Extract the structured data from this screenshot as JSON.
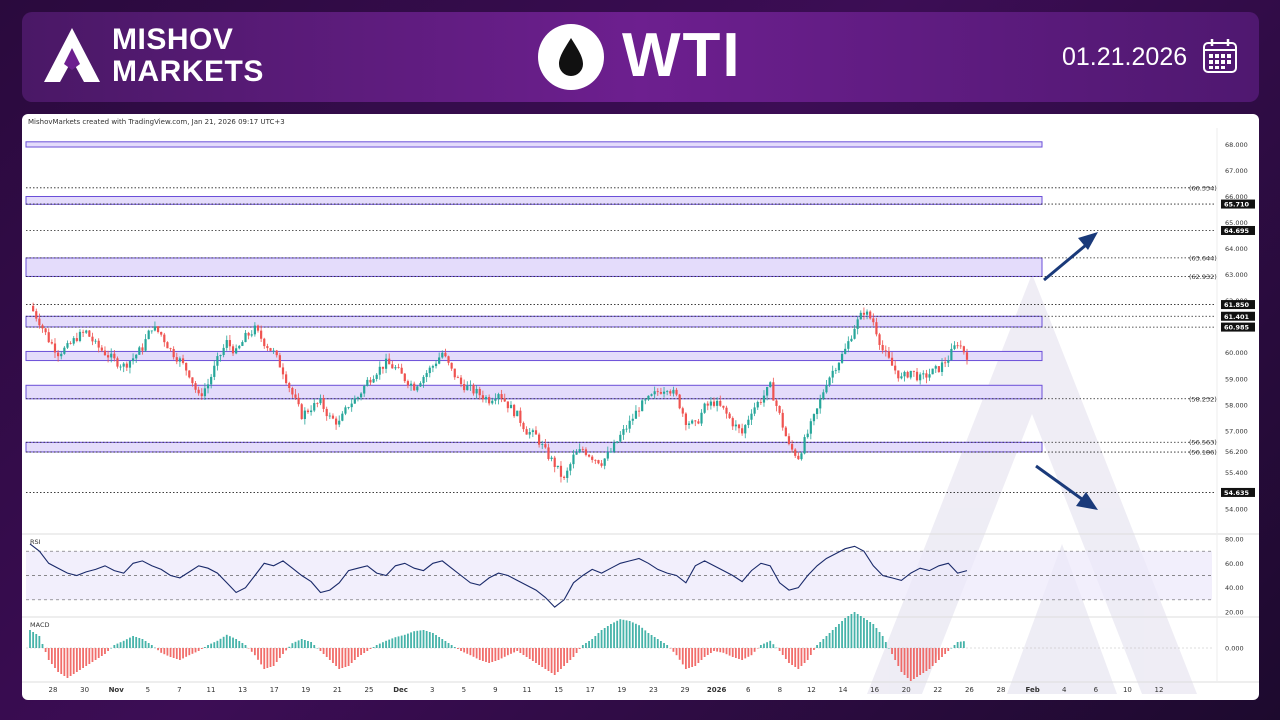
{
  "header": {
    "brand_line1": "MISHOV",
    "brand_line2": "MARKETS",
    "symbol": "WTI",
    "date": "01.21.2026",
    "icons": [
      "mishov-logo-icon",
      "oil-drop-icon",
      "calendar-icon"
    ]
  },
  "credit": "MishovMarkets created with TradingView.com, Jan 21, 2026 09:17 UTC+3",
  "colors": {
    "bull": "#26a69a",
    "bear": "#ef5350",
    "zone_fill": "#e4dcfb",
    "zone_stroke": "#6b4fd8",
    "arrow": "#1a3a7a",
    "line": "#1a2a6a"
  },
  "chart_data": [
    {
      "type": "candlestick",
      "title": "WTI",
      "ylim": [
        53.5,
        68.4
      ],
      "price_ticks": [
        "68.000",
        "67.000",
        "66.000",
        "65.000",
        "64.000",
        "63.000",
        "62.000",
        "61.000",
        "60.000",
        "59.000",
        "58.000",
        "57.000",
        "56.200",
        "55.400",
        "54.000"
      ],
      "x_ticks": [
        "28",
        "30",
        "Nov",
        "5",
        "7",
        "11",
        "13",
        "17",
        "19",
        "21",
        "25",
        "Dec",
        "3",
        "5",
        "9",
        "11",
        "15",
        "17",
        "19",
        "23",
        "29",
        "2026",
        "6",
        "8",
        "12",
        "14",
        "16",
        "20",
        "22",
        "26",
        "28",
        "Feb",
        "4",
        "6",
        "10",
        "12"
      ],
      "price_labels": [
        {
          "text": "(66.334)",
          "value": 66.334,
          "boxed": false
        },
        {
          "text": "65.710",
          "value": 65.71,
          "boxed": true
        },
        {
          "text": "64.695",
          "value": 64.695,
          "boxed": true
        },
        {
          "text": "(63.644)",
          "value": 63.644,
          "boxed": false
        },
        {
          "text": "(62.932)",
          "value": 62.932,
          "boxed": false
        },
        {
          "text": "61.850",
          "value": 61.85,
          "boxed": true
        },
        {
          "text": "61.401",
          "value": 61.401,
          "boxed": true
        },
        {
          "text": "60.985",
          "value": 60.985,
          "boxed": true
        },
        {
          "text": "(58.232)",
          "value": 58.232,
          "boxed": false
        },
        {
          "text": "(56.563)",
          "value": 56.563,
          "boxed": false
        },
        {
          "text": "(56.186)",
          "value": 56.186,
          "boxed": false
        },
        {
          "text": "54.635",
          "value": 54.635,
          "boxed": true
        }
      ],
      "zones": [
        [
          67.9,
          68.1
        ],
        [
          65.7,
          66.0
        ],
        [
          62.93,
          63.64
        ],
        [
          60.99,
          61.4
        ],
        [
          59.7,
          60.05
        ],
        [
          58.23,
          58.75
        ],
        [
          56.19,
          56.56
        ]
      ],
      "dotted_levels": [
        66.334,
        65.71,
        64.695,
        63.644,
        62.932,
        61.85,
        61.401,
        60.985,
        58.232,
        56.563,
        56.186,
        54.635
      ],
      "close_path": [
        61.8,
        61.2,
        60.5,
        60.0,
        60.2,
        60.6,
        60.8,
        60.3,
        60.0,
        59.7,
        59.5,
        59.8,
        60.2,
        61.0,
        60.7,
        60.1,
        59.7,
        59.2,
        58.3,
        58.8,
        59.7,
        60.4,
        60.0,
        60.6,
        60.9,
        60.4,
        60.0,
        59.3,
        58.4,
        57.6,
        57.9,
        58.1,
        57.5,
        57.3,
        58.0,
        58.3,
        58.9,
        59.3,
        59.6,
        59.4,
        59.0,
        58.7,
        59.1,
        59.5,
        60.0,
        59.3,
        58.8,
        58.6,
        58.4,
        58.2,
        58.5,
        58.0,
        57.6,
        57.0,
        56.8,
        56.2,
        55.7,
        55.1,
        56.0,
        56.3,
        56.0,
        55.8,
        56.2,
        56.8,
        57.3,
        57.9,
        58.2,
        58.5,
        58.7,
        58.3,
        57.4,
        57.2,
        57.9,
        58.1,
        57.8,
        57.3,
        56.9,
        57.8,
        58.2,
        58.7,
        57.6,
        56.4,
        56.0,
        56.9,
        57.8,
        58.9,
        59.5,
        60.1,
        61.0,
        61.6,
        61.2,
        60.1,
        59.5,
        59.0,
        59.3,
        59.0,
        59.2,
        59.4,
        59.8,
        60.4,
        59.9
      ],
      "arrows": [
        "up",
        "down"
      ],
      "watermark": "mishov-logo-watermark"
    },
    {
      "type": "line",
      "title": "RSI",
      "ylim": [
        20,
        80
      ],
      "ticks": [
        "80.00",
        "60.00",
        "40.00",
        "20.00"
      ],
      "levels": [
        70,
        50,
        30
      ],
      "values": [
        76,
        70,
        60,
        56,
        52,
        50,
        53,
        55,
        58,
        54,
        52,
        60,
        62,
        58,
        55,
        50,
        48,
        53,
        58,
        56,
        52,
        44,
        36,
        40,
        50,
        60,
        58,
        62,
        56,
        50,
        45,
        36,
        38,
        44,
        54,
        56,
        58,
        52,
        50,
        58,
        60,
        56,
        54,
        60,
        62,
        56,
        50,
        44,
        42,
        48,
        52,
        50,
        46,
        42,
        38,
        32,
        24,
        30,
        44,
        50,
        55,
        52,
        56,
        60,
        62,
        64,
        60,
        55,
        52,
        50,
        44,
        58,
        62,
        58,
        54,
        50,
        45,
        54,
        60,
        58,
        44,
        38,
        40,
        50,
        58,
        64,
        68,
        72,
        74,
        70,
        58,
        50,
        48,
        46,
        52,
        56,
        54,
        58,
        60,
        52,
        54
      ]
    },
    {
      "type": "bar",
      "title": "MACD",
      "ticks": [
        "0.000"
      ],
      "values": [
        0.3,
        0.2,
        -0.2,
        -0.4,
        -0.5,
        -0.4,
        -0.3,
        -0.2,
        -0.1,
        0.05,
        0.12,
        0.2,
        0.15,
        0.05,
        -0.08,
        -0.15,
        -0.2,
        -0.12,
        -0.05,
        0.05,
        0.12,
        0.22,
        0.15,
        0.05,
        -0.12,
        -0.35,
        -0.3,
        -0.1,
        0.08,
        0.15,
        0.1,
        -0.05,
        -0.2,
        -0.35,
        -0.3,
        -0.15,
        -0.05,
        0.05,
        0.12,
        0.18,
        0.22,
        0.28,
        0.3,
        0.25,
        0.15,
        0.05,
        -0.05,
        -0.12,
        -0.2,
        -0.25,
        -0.2,
        -0.12,
        -0.05,
        -0.15,
        -0.25,
        -0.35,
        -0.45,
        -0.3,
        -0.15,
        0.05,
        0.15,
        0.3,
        0.4,
        0.48,
        0.45,
        0.38,
        0.25,
        0.15,
        0.05,
        -0.12,
        -0.35,
        -0.3,
        -0.15,
        -0.05,
        -0.08,
        -0.15,
        -0.2,
        -0.12,
        0.05,
        0.12,
        -0.05,
        -0.25,
        -0.35,
        -0.2,
        0.05,
        0.2,
        0.35,
        0.5,
        0.6,
        0.5,
        0.4,
        0.2,
        -0.1,
        -0.4,
        -0.55,
        -0.45,
        -0.35,
        -0.2,
        -0.05,
        0.1,
        0.12
      ]
    }
  ]
}
